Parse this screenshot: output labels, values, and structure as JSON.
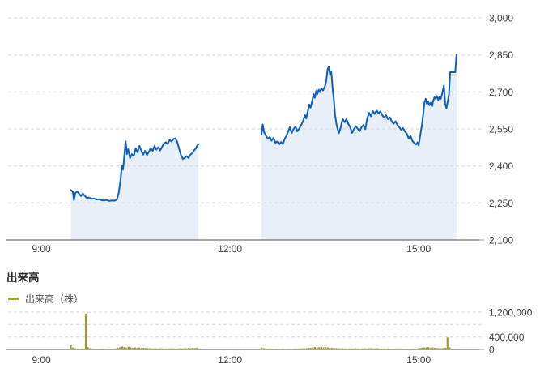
{
  "page": {
    "background": "#ffffff"
  },
  "volume_section": {
    "heading": "出来高",
    "legend_label": "出来高（株）"
  },
  "chart_data": [
    {
      "type": "area",
      "name": "intraday-price",
      "title": "",
      "x_domain": [
        8.472,
        15.962
      ],
      "x_ticks": [
        {
          "hour": 9,
          "label": "9:00"
        },
        {
          "hour": 12,
          "label": "12:00"
        },
        {
          "hour": 15,
          "label": "15:00"
        }
      ],
      "ylim": [
        2100,
        3000
      ],
      "y_ticks": [
        {
          "value": 2100,
          "label": "2,100"
        },
        {
          "value": 2250,
          "label": "2,250"
        },
        {
          "value": 2400,
          "label": "2,400"
        },
        {
          "value": 2550,
          "label": "2,550"
        },
        {
          "value": 2700,
          "label": "2,700"
        },
        {
          "value": 2850,
          "label": "2,850"
        },
        {
          "value": 3000,
          "label": "3,000"
        }
      ],
      "colors": {
        "line": "#0f5cc0",
        "fill": "#e9eff8",
        "grid": "#d6d6d6",
        "axis": "#4d4d4d"
      },
      "sessions": [
        {
          "name": "morning",
          "points": [
            [
              9.47,
              2303
            ],
            [
              9.5,
              2295
            ],
            [
              9.52,
              2262
            ],
            [
              9.54,
              2290
            ],
            [
              9.57,
              2297
            ],
            [
              9.6,
              2288
            ],
            [
              9.63,
              2278
            ],
            [
              9.66,
              2288
            ],
            [
              9.69,
              2280
            ],
            [
              9.72,
              2270
            ],
            [
              9.76,
              2272
            ],
            [
              9.8,
              2267
            ],
            [
              9.84,
              2268
            ],
            [
              9.88,
              2264
            ],
            [
              9.92,
              2265
            ],
            [
              9.96,
              2261
            ],
            [
              10.0,
              2260
            ],
            [
              10.04,
              2262
            ],
            [
              10.08,
              2258
            ],
            [
              10.12,
              2260
            ],
            [
              10.16,
              2259
            ],
            [
              10.2,
              2263
            ],
            [
              10.23,
              2290
            ],
            [
              10.26,
              2342
            ],
            [
              10.28,
              2400
            ],
            [
              10.3,
              2385
            ],
            [
              10.32,
              2442
            ],
            [
              10.34,
              2500
            ],
            [
              10.36,
              2448
            ],
            [
              10.38,
              2468
            ],
            [
              10.41,
              2432
            ],
            [
              10.44,
              2448
            ],
            [
              10.47,
              2441
            ],
            [
              10.5,
              2471
            ],
            [
              10.53,
              2455
            ],
            [
              10.56,
              2481
            ],
            [
              10.59,
              2462
            ],
            [
              10.62,
              2446
            ],
            [
              10.65,
              2461
            ],
            [
              10.68,
              2444
            ],
            [
              10.71,
              2457
            ],
            [
              10.74,
              2472
            ],
            [
              10.77,
              2461
            ],
            [
              10.8,
              2481
            ],
            [
              10.83,
              2466
            ],
            [
              10.86,
              2476
            ],
            [
              10.89,
              2463
            ],
            [
              10.92,
              2477
            ],
            [
              10.95,
              2491
            ],
            [
              10.98,
              2496
            ],
            [
              11.01,
              2489
            ],
            [
              11.04,
              2506
            ],
            [
              11.07,
              2499
            ],
            [
              11.1,
              2509
            ],
            [
              11.13,
              2512
            ],
            [
              11.16,
              2498
            ],
            [
              11.19,
              2470
            ],
            [
              11.22,
              2445
            ],
            [
              11.25,
              2428
            ],
            [
              11.28,
              2433
            ],
            [
              11.31,
              2440
            ],
            [
              11.34,
              2432
            ],
            [
              11.37,
              2446
            ],
            [
              11.4,
              2452
            ],
            [
              11.43,
              2463
            ],
            [
              11.46,
              2472
            ],
            [
              11.48,
              2483
            ],
            [
              11.5,
              2488
            ]
          ]
        },
        {
          "name": "afternoon",
          "points": [
            [
              12.5,
              2528
            ],
            [
              12.52,
              2568
            ],
            [
              12.54,
              2538
            ],
            [
              12.57,
              2524
            ],
            [
              12.6,
              2510
            ],
            [
              12.63,
              2517
            ],
            [
              12.66,
              2502
            ],
            [
              12.69,
              2514
            ],
            [
              12.72,
              2494
            ],
            [
              12.75,
              2499
            ],
            [
              12.78,
              2487
            ],
            [
              12.81,
              2497
            ],
            [
              12.84,
              2489
            ],
            [
              12.87,
              2510
            ],
            [
              12.9,
              2524
            ],
            [
              12.93,
              2543
            ],
            [
              12.95,
              2557
            ],
            [
              12.98,
              2534
            ],
            [
              13.01,
              2549
            ],
            [
              13.04,
              2559
            ],
            [
              13.07,
              2540
            ],
            [
              13.1,
              2551
            ],
            [
              13.13,
              2565
            ],
            [
              13.16,
              2582
            ],
            [
              13.19,
              2606
            ],
            [
              13.21,
              2592
            ],
            [
              13.24,
              2627
            ],
            [
              13.26,
              2649
            ],
            [
              13.28,
              2636
            ],
            [
              13.31,
              2667
            ],
            [
              13.33,
              2691
            ],
            [
              13.35,
              2676
            ],
            [
              13.37,
              2704
            ],
            [
              13.39,
              2692
            ],
            [
              13.41,
              2709
            ],
            [
              13.43,
              2699
            ],
            [
              13.45,
              2714
            ],
            [
              13.48,
              2706
            ],
            [
              13.51,
              2724
            ],
            [
              13.53,
              2744
            ],
            [
              13.55,
              2791
            ],
            [
              13.57,
              2803
            ],
            [
              13.59,
              2769
            ],
            [
              13.61,
              2781
            ],
            [
              13.63,
              2716
            ],
            [
              13.65,
              2671
            ],
            [
              13.67,
              2606
            ],
            [
              13.69,
              2572
            ],
            [
              13.71,
              2549
            ],
            [
              13.73,
              2533
            ],
            [
              13.76,
              2557
            ],
            [
              13.79,
              2591
            ],
            [
              13.82,
              2577
            ],
            [
              13.85,
              2589
            ],
            [
              13.88,
              2571
            ],
            [
              13.91,
              2557
            ],
            [
              13.94,
              2534
            ],
            [
              13.97,
              2549
            ],
            [
              14.0,
              2561
            ],
            [
              14.03,
              2551
            ],
            [
              14.06,
              2541
            ],
            [
              14.09,
              2557
            ],
            [
              14.12,
              2566
            ],
            [
              14.15,
              2549
            ],
            [
              14.18,
              2591
            ],
            [
              14.21,
              2615
            ],
            [
              14.24,
              2601
            ],
            [
              14.27,
              2622
            ],
            [
              14.3,
              2611
            ],
            [
              14.33,
              2625
            ],
            [
              14.36,
              2613
            ],
            [
              14.39,
              2621
            ],
            [
              14.42,
              2606
            ],
            [
              14.45,
              2596
            ],
            [
              14.48,
              2606
            ],
            [
              14.51,
              2589
            ],
            [
              14.54,
              2597
            ],
            [
              14.57,
              2581
            ],
            [
              14.6,
              2571
            ],
            [
              14.63,
              2581
            ],
            [
              14.66,
              2566
            ],
            [
              14.69,
              2557
            ],
            [
              14.72,
              2546
            ],
            [
              14.75,
              2553
            ],
            [
              14.78,
              2539
            ],
            [
              14.81,
              2531
            ],
            [
              14.84,
              2511
            ],
            [
              14.87,
              2521
            ],
            [
              14.9,
              2501
            ],
            [
              14.93,
              2493
            ],
            [
              14.96,
              2487
            ],
            [
              14.98,
              2496
            ],
            [
              15.0,
              2483
            ],
            [
              15.02,
              2519
            ],
            [
              15.05,
              2564
            ],
            [
              15.07,
              2609
            ],
            [
              15.09,
              2656
            ],
            [
              15.11,
              2672
            ],
            [
              15.13,
              2651
            ],
            [
              15.15,
              2661
            ],
            [
              15.17,
              2646
            ],
            [
              15.19,
              2656
            ],
            [
              15.21,
              2641
            ],
            [
              15.23,
              2664
            ],
            [
              15.25,
              2679
            ],
            [
              15.27,
              2671
            ],
            [
              15.29,
              2683
            ],
            [
              15.31,
              2668
            ],
            [
              15.33,
              2680
            ],
            [
              15.35,
              2672
            ],
            [
              15.37,
              2690
            ],
            [
              15.4,
              2726
            ],
            [
              15.42,
              2652
            ],
            [
              15.44,
              2633
            ],
            [
              15.46,
              2661
            ],
            [
              15.48,
              2688
            ],
            [
              15.5,
              2780
            ],
            [
              15.58,
              2780
            ],
            [
              15.6,
              2852
            ]
          ]
        }
      ]
    },
    {
      "type": "bar",
      "name": "volume",
      "x_domain": [
        8.472,
        15.962
      ],
      "x_ticks": [
        {
          "hour": 9,
          "label": "9:00"
        },
        {
          "hour": 12,
          "label": "12:00"
        },
        {
          "hour": 15,
          "label": "15:00"
        }
      ],
      "ylim": [
        0,
        1356000
      ],
      "grid_values": [
        400000,
        800000,
        1200000
      ],
      "y_ticks": [
        {
          "value": 0,
          "label": "0"
        },
        {
          "value": 400000,
          "label": "400,000"
        },
        {
          "value": 1200000,
          "label": "1,200,000"
        }
      ],
      "color": "#a49b25",
      "sessions": [
        {
          "name": "morning",
          "start": 9.47,
          "step": 0.034,
          "values": [
            140000,
            60000,
            35000,
            28000,
            22000,
            30000,
            26000,
            1150000,
            70000,
            40000,
            32000,
            26000,
            22000,
            18000,
            24000,
            20000,
            26000,
            21000,
            18000,
            16000,
            22000,
            28000,
            50000,
            70000,
            95000,
            75000,
            58000,
            85000,
            68000,
            52000,
            62000,
            48000,
            58000,
            42000,
            52000,
            46000,
            38000,
            42000,
            32000,
            36000,
            30000,
            26000,
            36000,
            30000,
            26000,
            32000,
            26000,
            36000,
            30000,
            26000,
            30000,
            36000,
            30000,
            42000,
            36000,
            46000,
            40000,
            52000,
            46000,
            58000
          ]
        },
        {
          "name": "afternoon",
          "start": 12.5,
          "step": 0.034,
          "values": [
            60000,
            42000,
            32000,
            26000,
            32000,
            26000,
            21000,
            26000,
            21000,
            18000,
            23000,
            19000,
            21000,
            26000,
            21000,
            26000,
            31000,
            26000,
            31000,
            36000,
            31000,
            42000,
            46000,
            56000,
            66000,
            76000,
            62000,
            72000,
            82000,
            66000,
            76000,
            62000,
            52000,
            56000,
            46000,
            42000,
            36000,
            31000,
            36000,
            31000,
            26000,
            31000,
            26000,
            31000,
            36000,
            31000,
            26000,
            31000,
            36000,
            31000,
            36000,
            42000,
            36000,
            31000,
            36000,
            31000,
            26000,
            31000,
            26000,
            31000,
            26000,
            21000,
            26000,
            31000,
            26000,
            31000,
            26000,
            21000,
            26000,
            21000,
            26000,
            31000,
            26000,
            31000,
            46000,
            56000,
            66000,
            62000,
            72000,
            56000,
            62000,
            52000,
            46000,
            42000,
            36000,
            46000,
            56000,
            380000,
            66000
          ]
        }
      ]
    }
  ]
}
